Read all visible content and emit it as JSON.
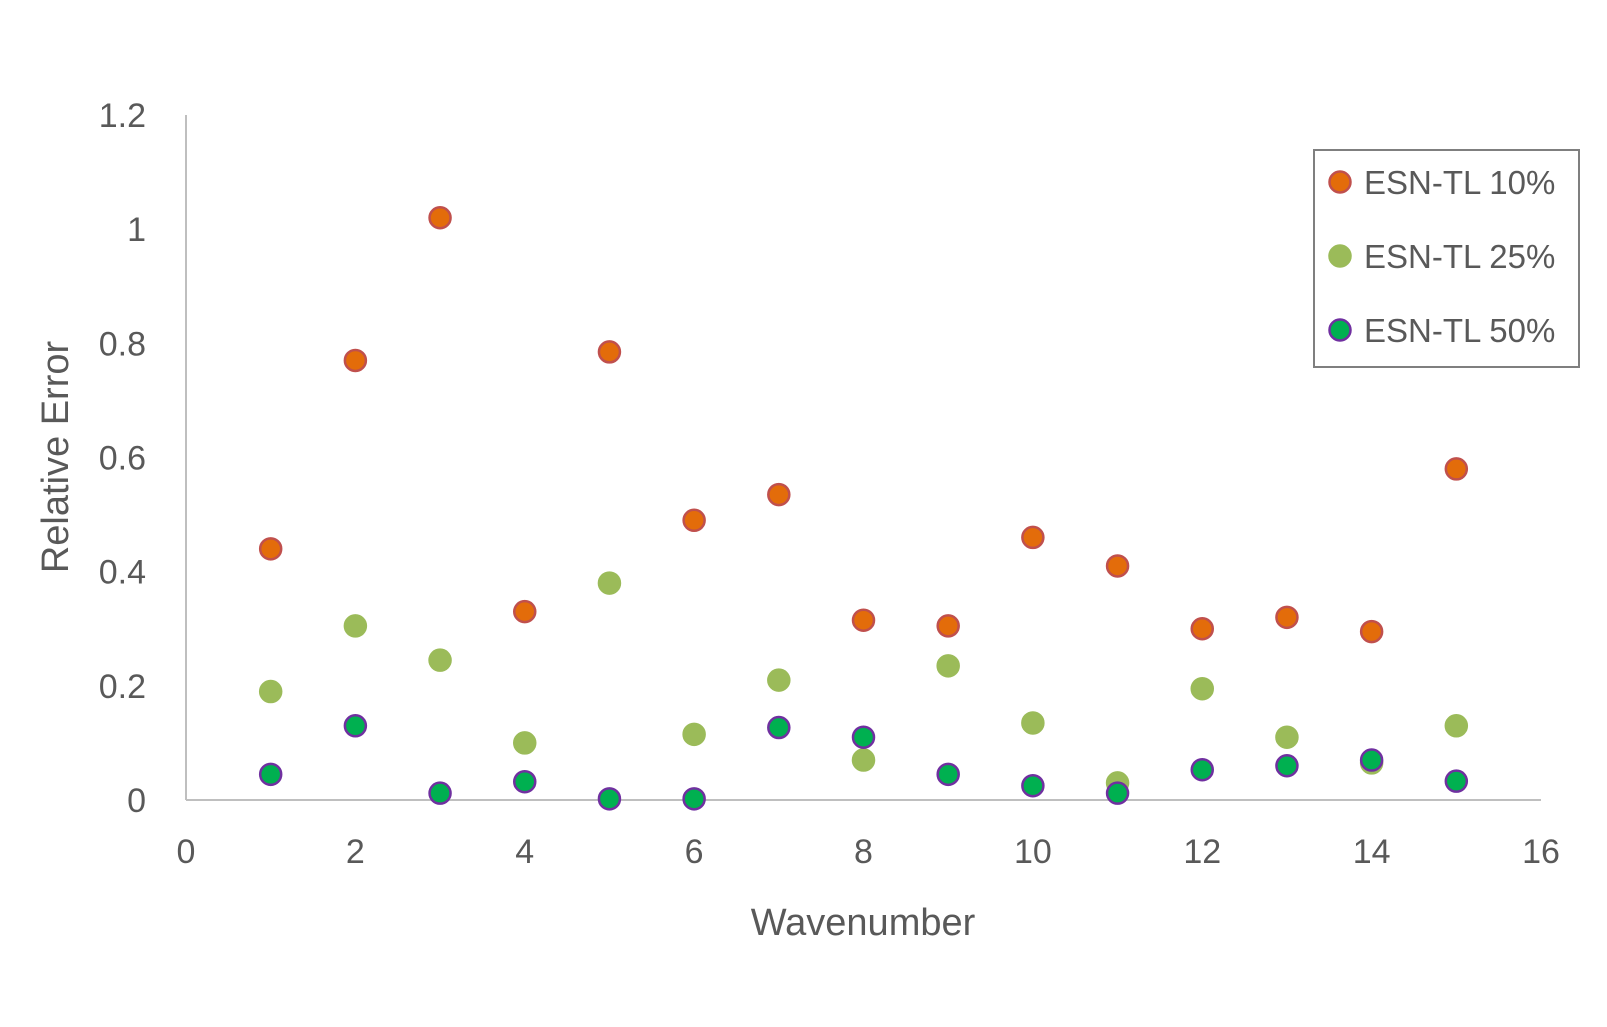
{
  "chart_data": {
    "type": "scatter",
    "title": "",
    "xlabel": "Wavenumber",
    "ylabel": "Relative Error",
    "xlim": [
      0,
      16
    ],
    "ylim": [
      0,
      1.2
    ],
    "x_ticks": [
      "0",
      "2",
      "4",
      "6",
      "8",
      "10",
      "12",
      "14",
      "16"
    ],
    "y_ticks": [
      "0",
      "0.2",
      "0.4",
      "0.6",
      "0.8",
      "1",
      "1.2"
    ],
    "grid": false,
    "legend_position": "top-right",
    "series": [
      {
        "name": "ESN-TL 10%",
        "color": "#E36C0A",
        "marker_edge": "#C0504D",
        "x": [
          1,
          2,
          3,
          4,
          5,
          6,
          7,
          8,
          9,
          10,
          11,
          12,
          13,
          14,
          15
        ],
        "y": [
          0.44,
          0.77,
          1.02,
          0.33,
          0.785,
          0.49,
          0.535,
          0.315,
          0.305,
          0.46,
          0.41,
          0.3,
          0.32,
          0.295,
          0.58
        ]
      },
      {
        "name": "ESN-TL 25%",
        "color": "#9BBB59",
        "marker_edge": "#9BBB59",
        "x": [
          1,
          2,
          3,
          4,
          5,
          6,
          7,
          8,
          9,
          10,
          11,
          12,
          13,
          14,
          15
        ],
        "y": [
          0.19,
          0.305,
          0.245,
          0.1,
          0.38,
          0.115,
          0.21,
          0.07,
          0.235,
          0.135,
          0.03,
          0.195,
          0.11,
          0.065,
          0.13
        ]
      },
      {
        "name": "ESN-TL 50%",
        "color": "#00B050",
        "marker_edge": "#7030A0",
        "x": [
          1,
          2,
          3,
          4,
          5,
          6,
          7,
          8,
          9,
          10,
          11,
          12,
          13,
          14,
          15
        ],
        "y": [
          0.045,
          0.13,
          0.012,
          0.032,
          0.002,
          0.002,
          0.127,
          0.11,
          0.045,
          0.025,
          0.012,
          0.053,
          0.06,
          0.07,
          0.033
        ]
      }
    ]
  }
}
